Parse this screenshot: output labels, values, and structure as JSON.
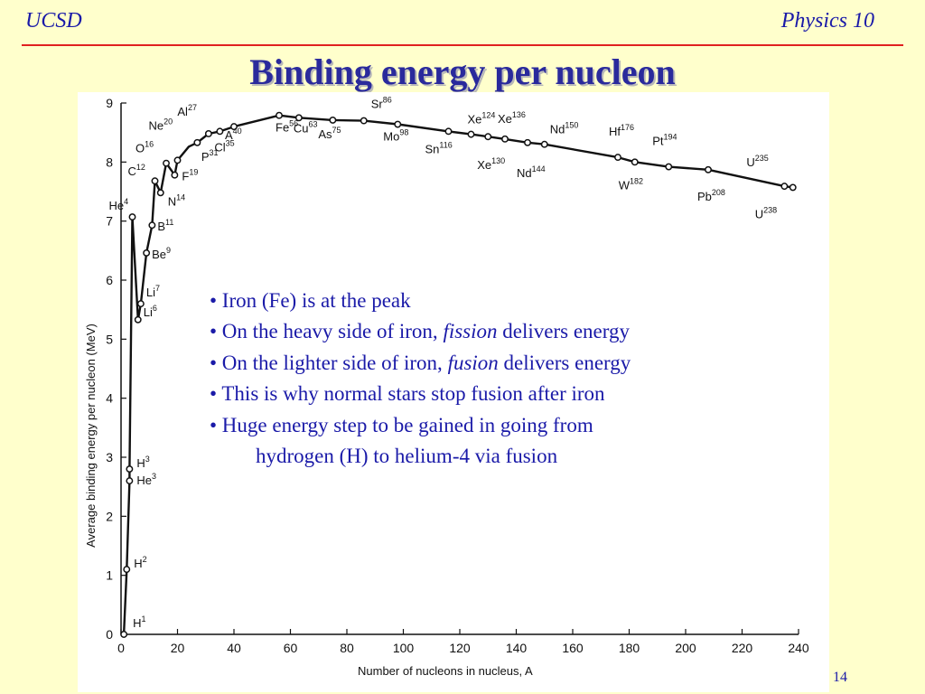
{
  "header": {
    "left": "UCSD",
    "right": "Physics 10"
  },
  "title": "Binding energy per nucleon",
  "page_number": "14",
  "bullets": [
    {
      "pre": "• Iron (Fe) is at the peak",
      "em": "",
      "post": ""
    },
    {
      "pre": "• On the heavy side of iron, ",
      "em": "fission",
      "post": " delivers energy"
    },
    {
      "pre": "• On the lighter side of iron, ",
      "em": "fusion",
      "post": " delivers energy"
    },
    {
      "pre": "• This is why normal stars stop fusion after iron",
      "em": "",
      "post": ""
    },
    {
      "pre": "• Huge energy step to be gained in going from",
      "em": "",
      "post": ""
    },
    {
      "pre": "hydrogen (H) to helium-4 via fusion",
      "em": "",
      "post": ""
    }
  ],
  "chart_data": {
    "type": "line",
    "xlabel": "Number of nucleons in nucleus, A",
    "ylabel": "Average binding energy per nucleon (MeV)",
    "xlim": [
      0,
      240
    ],
    "ylim": [
      0,
      9
    ],
    "xticks": [
      0,
      20,
      40,
      60,
      80,
      100,
      120,
      140,
      160,
      180,
      200,
      220,
      240
    ],
    "yticks": [
      0,
      1,
      2,
      3,
      4,
      5,
      6,
      7,
      8,
      9
    ],
    "x": [
      1,
      2,
      3,
      3,
      4,
      6,
      7,
      9,
      11,
      12,
      14,
      16,
      19,
      20,
      24,
      27,
      31,
      35,
      40,
      56,
      63,
      75,
      86,
      98,
      116,
      124,
      130,
      136,
      144,
      150,
      176,
      182,
      194,
      208,
      235,
      238
    ],
    "y": [
      0,
      1.1,
      2.6,
      2.8,
      7.07,
      5.33,
      5.6,
      6.46,
      6.93,
      7.68,
      7.48,
      7.98,
      7.78,
      8.03,
      8.26,
      8.33,
      8.48,
      8.52,
      8.6,
      8.79,
      8.75,
      8.71,
      8.7,
      8.64,
      8.52,
      8.47,
      8.43,
      8.39,
      8.33,
      8.3,
      8.08,
      8.0,
      7.92,
      7.87,
      7.59,
      7.57
    ],
    "points": [
      {
        "x": 1,
        "y": 0,
        "name": "H",
        "sup": "1"
      },
      {
        "x": 2,
        "y": 1.1,
        "name": "H",
        "sup": "2"
      },
      {
        "x": 3,
        "y": 2.6,
        "name": "He",
        "sup": "3"
      },
      {
        "x": 3,
        "y": 2.8,
        "name": "H",
        "sup": "3"
      },
      {
        "x": 4,
        "y": 7.07,
        "name": "He",
        "sup": "4"
      },
      {
        "x": 6,
        "y": 5.33,
        "name": "Li",
        "sup": "6"
      },
      {
        "x": 7,
        "y": 5.6,
        "name": "Li",
        "sup": "7"
      },
      {
        "x": 9,
        "y": 6.46,
        "name": "Be",
        "sup": "9"
      },
      {
        "x": 11,
        "y": 6.93,
        "name": "B",
        "sup": "11"
      },
      {
        "x": 12,
        "y": 7.68,
        "name": "C",
        "sup": "12"
      },
      {
        "x": 14,
        "y": 7.48,
        "name": "N",
        "sup": "14"
      },
      {
        "x": 16,
        "y": 7.98,
        "name": "O",
        "sup": "16"
      },
      {
        "x": 19,
        "y": 7.78,
        "name": "F",
        "sup": "19"
      },
      {
        "x": 20,
        "y": 8.03,
        "name": "Ne",
        "sup": "20"
      },
      {
        "x": 27,
        "y": 8.33,
        "name": "Al",
        "sup": "27"
      },
      {
        "x": 31,
        "y": 8.48,
        "name": "P",
        "sup": "31"
      },
      {
        "x": 35,
        "y": 8.52,
        "name": "Cl",
        "sup": "35"
      },
      {
        "x": 40,
        "y": 8.6,
        "name": "A",
        "sup": "40"
      },
      {
        "x": 56,
        "y": 8.79,
        "name": "Fe",
        "sup": "56"
      },
      {
        "x": 63,
        "y": 8.75,
        "name": "Cu",
        "sup": "63"
      },
      {
        "x": 75,
        "y": 8.71,
        "name": "As",
        "sup": "75"
      },
      {
        "x": 86,
        "y": 8.7,
        "name": "Sr",
        "sup": "86"
      },
      {
        "x": 98,
        "y": 8.64,
        "name": "Mo",
        "sup": "98"
      },
      {
        "x": 116,
        "y": 8.52,
        "name": "Sn",
        "sup": "116"
      },
      {
        "x": 124,
        "y": 8.47,
        "name": "Xe",
        "sup": "124"
      },
      {
        "x": 130,
        "y": 8.43,
        "name": "Xe",
        "sup": "130"
      },
      {
        "x": 136,
        "y": 8.39,
        "name": "Xe",
        "sup": "136"
      },
      {
        "x": 144,
        "y": 8.33,
        "name": "Nd",
        "sup": "144"
      },
      {
        "x": 150,
        "y": 8.3,
        "name": "Nd",
        "sup": "150"
      },
      {
        "x": 176,
        "y": 8.08,
        "name": "Hf",
        "sup": "176"
      },
      {
        "x": 182,
        "y": 8.0,
        "name": "W",
        "sup": "182"
      },
      {
        "x": 194,
        "y": 7.92,
        "name": "Pt",
        "sup": "194"
      },
      {
        "x": 208,
        "y": 7.87,
        "name": "Pb",
        "sup": "208"
      },
      {
        "x": 235,
        "y": 7.59,
        "name": "U",
        "sup": "235"
      },
      {
        "x": 238,
        "y": 7.57,
        "name": "U",
        "sup": "238"
      }
    ],
    "grid": false
  }
}
